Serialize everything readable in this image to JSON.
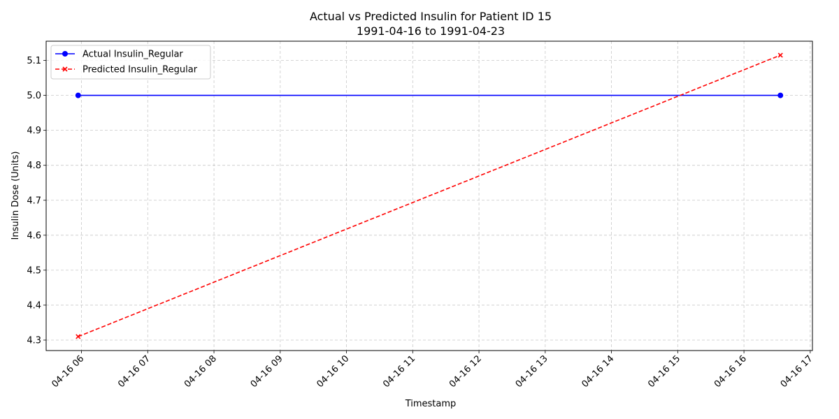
{
  "chart_data": {
    "type": "line",
    "title": "Actual vs Predicted Insulin for Patient ID 15",
    "subtitle": "1991-04-16 to 1991-04-23",
    "xlabel": "Timestamp",
    "ylabel": "Insulin Dose (Units)",
    "x_ticks": [
      "04-16 06",
      "04-16 07",
      "04-16 08",
      "04-16 09",
      "04-16 10",
      "04-16 11",
      "04-16 12",
      "04-16 13",
      "04-16 14",
      "04-16 15",
      "04-16 16",
      "04-16 17"
    ],
    "x_tick_times": [
      "1991-04-16 06:00",
      "1991-04-16 07:00",
      "1991-04-16 08:00",
      "1991-04-16 09:00",
      "1991-04-16 10:00",
      "1991-04-16 11:00",
      "1991-04-16 12:00",
      "1991-04-16 13:00",
      "1991-04-16 14:00",
      "1991-04-16 15:00",
      "1991-04-16 16:00",
      "1991-04-16 17:00"
    ],
    "y_ticks": [
      "4.3",
      "4.4",
      "4.5",
      "4.6",
      "4.7",
      "4.8",
      "4.9",
      "5.0",
      "5.1"
    ],
    "xlim": [
      "1991-04-16 05:28",
      "1991-04-16 17:02"
    ],
    "ylim": [
      4.27,
      5.155
    ],
    "grid": true,
    "legend_position": "upper-left",
    "series": [
      {
        "name": "Actual Insulin_Regular",
        "color": "#0000ff",
        "linestyle": "solid",
        "marker": "circle",
        "points": [
          {
            "x": "1991-04-16 05:57",
            "y": 5.0
          },
          {
            "x": "1991-04-16 16:33",
            "y": 5.0
          }
        ]
      },
      {
        "name": "Predicted Insulin_Regular",
        "color": "#ff0000",
        "linestyle": "dashed",
        "marker": "x",
        "points": [
          {
            "x": "1991-04-16 05:57",
            "y": 4.31
          },
          {
            "x": "1991-04-16 16:33",
            "y": 5.115
          }
        ]
      }
    ]
  }
}
